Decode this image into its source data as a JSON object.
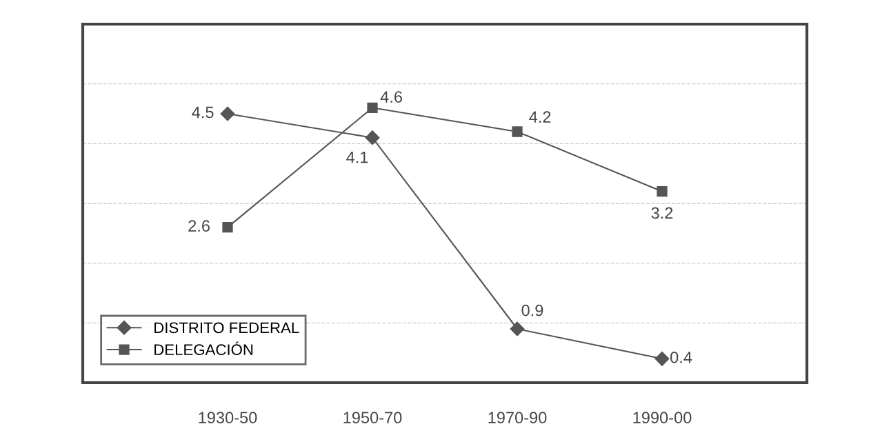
{
  "chart_data": {
    "type": "line",
    "categories": [
      "1930-50",
      "1950-70",
      "1970-90",
      "1990-00"
    ],
    "series": [
      {
        "name": "DISTRITO FEDERAL",
        "color": "#555555",
        "marker": "diamond",
        "values": [
          4.5,
          4.1,
          0.9,
          0.4
        ]
      },
      {
        "name": "DELEGACIÓN",
        "color": "#555555",
        "marker": "square",
        "values": [
          2.6,
          4.6,
          4.2,
          3.2
        ]
      }
    ],
    "ylim": [
      0,
      6
    ],
    "yticks": [
      {
        "value": 1,
        "label": null
      },
      {
        "value": 2,
        "label": null
      },
      {
        "value": 3,
        "label": null
      },
      {
        "value": 4,
        "label": null
      },
      {
        "value": 5,
        "label": null
      }
    ],
    "tick_labels": "x",
    "grid": "y",
    "data_labels": true,
    "legend": "bottom left",
    "line_style": "solid"
  }
}
